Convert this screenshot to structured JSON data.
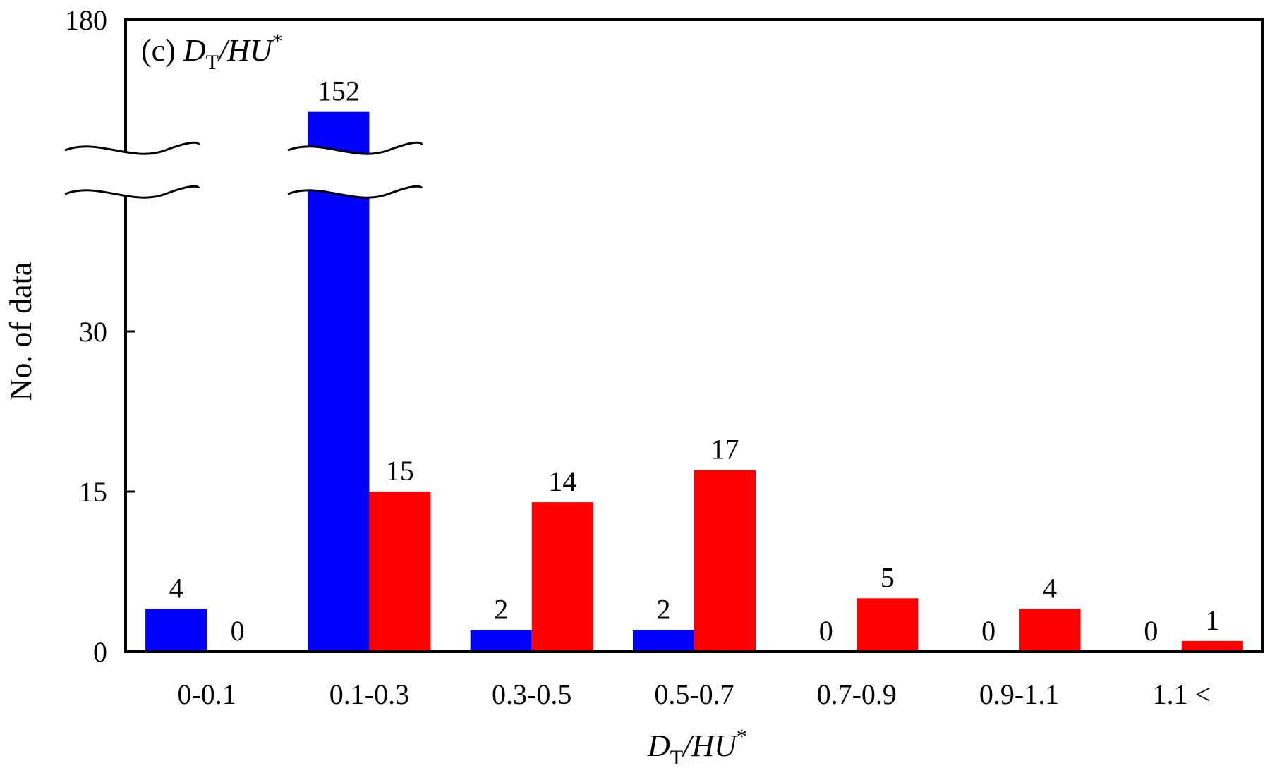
{
  "chart_data": {
    "type": "bar",
    "title": "(c) D_T/HU*",
    "title_parts": {
      "prefix": "(c) ",
      "var": "D",
      "sub": "T",
      "rest": "/HU",
      "sup": "*"
    },
    "xlabel": "D_T/HU*",
    "xlabel_parts": {
      "var": "D",
      "sub": "T",
      "rest": "/HU",
      "sup": "*"
    },
    "ylabel": "No. of data",
    "categories": [
      "0-0.1",
      "0.1-0.3",
      "0.3-0.5",
      "0.5-0.7",
      "0.7-0.9",
      "0.9-1.1",
      "1.1 <"
    ],
    "series": [
      {
        "values": [
          4,
          152,
          2,
          2,
          0,
          0,
          0
        ],
        "color": "#0000ff"
      },
      {
        "values": [
          0,
          15,
          14,
          17,
          5,
          4,
          1
        ],
        "color": "#ff0000"
      }
    ],
    "y_ticks": [
      "0",
      "15",
      "30",
      "180"
    ],
    "ylim": [
      0,
      180
    ],
    "axis_break": true,
    "grid": false,
    "legend": "none"
  }
}
